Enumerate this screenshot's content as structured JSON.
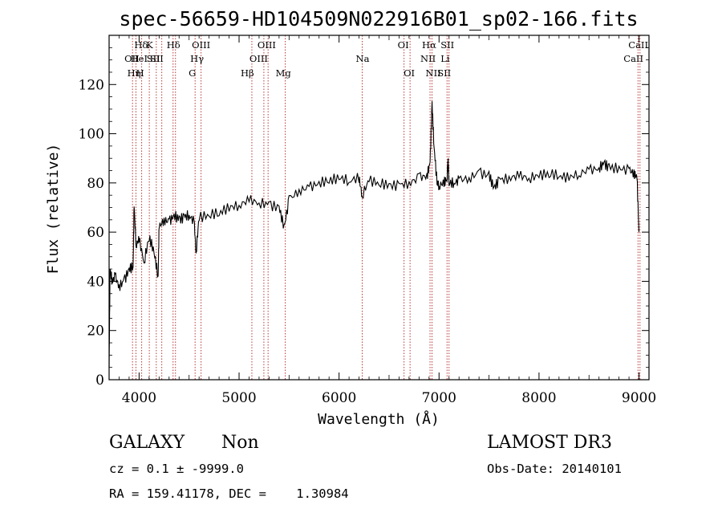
{
  "chart_data": {
    "type": "line",
    "title": "spec-56659-HD104509N022916B01_sp02-166.fits",
    "xlabel": "Wavelength (Å)",
    "ylabel": "Flux (relative)",
    "xlim": [
      3700,
      9100
    ],
    "ylim": [
      0,
      140
    ],
    "xticks": [
      4000,
      5000,
      6000,
      7000,
      8000,
      9000
    ],
    "yticks": [
      0,
      20,
      40,
      60,
      80,
      100,
      120
    ],
    "series": [
      {
        "x": [
          3700,
          3710,
          3730,
          3760,
          3800,
          3850,
          3900,
          3940,
          3950,
          3970,
          4000,
          4050,
          4100,
          4150,
          4190,
          4200,
          4250,
          4300,
          4350,
          4400,
          4450,
          4500,
          4550,
          4570,
          4600,
          4700,
          4800,
          4900,
          5000,
          5100,
          5200,
          5300,
          5400,
          5450,
          5500,
          5600,
          5700,
          5800,
          5900,
          6000,
          6100,
          6200,
          6230,
          6300,
          6400,
          6500,
          6600,
          6700,
          6800,
          6880,
          6910,
          6930,
          6950,
          6980,
          7000,
          7050,
          7080,
          7090,
          7100,
          7150,
          7200,
          7300,
          7400,
          7500,
          7550,
          7600,
          7700,
          7800,
          7900,
          8000,
          8100,
          8200,
          8300,
          8400,
          8500,
          8600,
          8650,
          8700,
          8800,
          8900,
          8950,
          8980,
          9000
        ],
        "y": [
          5,
          45,
          40,
          42,
          38,
          40,
          45,
          46,
          70,
          55,
          57,
          48,
          58,
          52,
          42,
          62,
          65,
          64,
          67,
          65,
          66,
          67,
          64,
          52,
          66,
          67,
          68,
          70,
          71,
          73,
          72,
          71,
          70,
          62,
          73,
          77,
          78,
          80,
          81,
          82,
          81,
          82,
          75,
          81,
          80,
          79,
          79,
          80,
          82,
          83,
          88,
          112,
          95,
          80,
          79,
          80,
          82,
          90,
          80,
          80,
          81,
          82,
          84,
          83,
          78,
          81,
          82,
          83,
          82,
          83,
          84,
          83,
          82,
          84,
          85,
          86,
          88,
          86,
          86,
          85,
          84,
          82,
          60
        ]
      }
    ],
    "lines": [
      {
        "x": 3934,
        "labels": [
          "OII"
        ],
        "row": [
          1
        ],
        "dx": [
          -10
        ]
      },
      {
        "x": 3968,
        "labels": [
          "Hδ"
        ],
        "row": [
          0
        ],
        "dx": [
          -2
        ]
      },
      {
        "x": 4026,
        "labels": [
          "HeI",
          "Hη"
        ],
        "row": [
          1,
          2
        ],
        "dx": [
          -14,
          -18
        ]
      },
      {
        "x": 4102,
        "labels": [
          "K"
        ],
        "row": [
          0
        ],
        "dx": [
          -4
        ]
      },
      {
        "x": 4172,
        "labels": [
          "SII"
        ],
        "row": [
          1
        ],
        "dx": [
          -8
        ]
      },
      {
        "x": 4227,
        "labels": [
          "H"
        ],
        "row": [
          2
        ],
        "dx": [
          -32
        ]
      },
      {
        "x": 4340,
        "labels": [
          "Hδ"
        ],
        "row": [
          0
        ],
        "dx": [
          -8
        ]
      },
      {
        "x": 4364,
        "labels": [
          "SII"
        ],
        "row": [
          1
        ],
        "dx": [
          -36
        ]
      },
      {
        "x": 4560,
        "labels": [
          "OIII",
          "Hγ",
          "G"
        ],
        "row": [
          0,
          1,
          2
        ],
        "dx": [
          -4,
          -6,
          -8
        ]
      },
      {
        "x": 4620,
        "labels": [],
        "row": [],
        "dx": []
      },
      {
        "x": 5128,
        "labels": [
          "Hβ"
        ],
        "row": [
          2
        ],
        "dx": [
          -14
        ]
      },
      {
        "x": 5248,
        "labels": [
          "OIII",
          "OIII"
        ],
        "row": [
          0,
          1
        ],
        "dx": [
          -8,
          -18
        ]
      },
      {
        "x": 5290,
        "labels": [],
        "row": [],
        "dx": []
      },
      {
        "x": 5462,
        "labels": [
          "Mg"
        ],
        "row": [
          2
        ],
        "dx": [
          -12
        ]
      },
      {
        "x": 6232,
        "labels": [
          "Na"
        ],
        "row": [
          1
        ],
        "dx": [
          -8
        ]
      },
      {
        "x": 6650,
        "labels": [
          "OI"
        ],
        "row": [
          0
        ],
        "dx": [
          -8
        ]
      },
      {
        "x": 6710,
        "labels": [
          "OI"
        ],
        "row": [
          2
        ],
        "dx": [
          -8
        ]
      },
      {
        "x": 6910,
        "labels": [
          "Hα",
          "NII"
        ],
        "row": [
          0,
          1
        ],
        "dx": [
          -10,
          -12
        ]
      },
      {
        "x": 6930,
        "labels": [
          "NII"
        ],
        "row": [
          2
        ],
        "dx": [
          -8
        ]
      },
      {
        "x": 7080,
        "labels": [
          "SII",
          "Li",
          "SII"
        ],
        "row": [
          0,
          1,
          2
        ],
        "dx": [
          -8,
          -8,
          -12
        ]
      },
      {
        "x": 7100,
        "labels": [],
        "row": [],
        "dx": []
      },
      {
        "x": 8990,
        "labels": [
          "CaII",
          "CaII"
        ],
        "row": [
          0,
          1
        ],
        "dx": [
          -12,
          -18
        ]
      },
      {
        "x": 9010,
        "labels": [],
        "row": [],
        "dx": []
      }
    ]
  },
  "info": {
    "class": "GALAXY",
    "subclass": "Non",
    "survey": "LAMOST DR3",
    "cz": "cz = 0.1 ± -9999.0",
    "obs_date": "Obs-Date: 20140101",
    "radec": "RA = 159.41178, DEC =    1.30984"
  }
}
